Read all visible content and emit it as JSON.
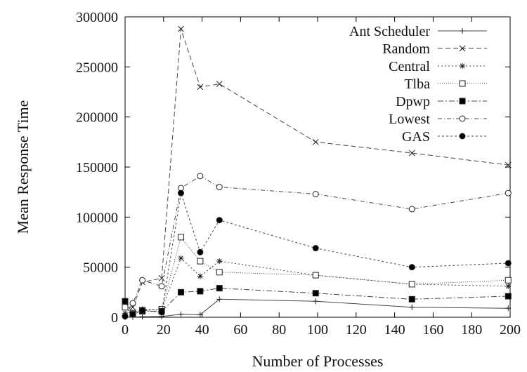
{
  "chart_data": {
    "type": "line",
    "title": "",
    "xlabel": "Number of Processes",
    "ylabel": "Mean Response Time",
    "xlim": [
      0,
      200
    ],
    "ylim": [
      0,
      300000
    ],
    "xticks": [
      0,
      20,
      40,
      60,
      80,
      100,
      120,
      140,
      160,
      180,
      200
    ],
    "yticks": [
      0,
      50000,
      100000,
      150000,
      200000,
      250000,
      300000
    ],
    "grid": false,
    "legend_position": "top-right",
    "x": [
      0,
      4,
      9,
      19,
      29,
      39,
      49,
      99,
      149,
      199
    ],
    "series": [
      {
        "name": "Ant Scheduler",
        "marker": "plus",
        "dash": "",
        "values": [
          0,
          200,
          500,
          800,
          3000,
          2500,
          18000,
          16000,
          10000,
          9000
        ]
      },
      {
        "name": "Random",
        "marker": "x",
        "dash": "7 4",
        "values": [
          10000,
          10000,
          35000,
          39000,
          288000,
          230000,
          233000,
          175000,
          164000,
          152000
        ]
      },
      {
        "name": "Central",
        "marker": "star",
        "dash": "2 3",
        "values": [
          4000,
          5000,
          8000,
          8000,
          59000,
          41000,
          56000,
          42000,
          33000,
          31000
        ]
      },
      {
        "name": "Tlba",
        "marker": "square-open",
        "dash": "1 2",
        "values": [
          10000,
          4000,
          7000,
          8000,
          80000,
          56000,
          45000,
          42000,
          33000,
          37000
        ]
      },
      {
        "name": "Dpwp",
        "marker": "square-filled",
        "dash": "8 3 2 3",
        "values": [
          16000,
          3000,
          6000,
          6000,
          25000,
          26000,
          29000,
          24000,
          18000,
          21000
        ]
      },
      {
        "name": "Lowest",
        "marker": "circle-open",
        "dash": "6 3 1 3",
        "values": [
          1000,
          14000,
          37000,
          31000,
          129000,
          141000,
          130000,
          123000,
          108000,
          124000
        ]
      },
      {
        "name": "GAS",
        "marker": "circle-filled",
        "dash": "3 3",
        "values": [
          1000,
          3000,
          7000,
          5000,
          124000,
          65000,
          97000,
          69000,
          50000,
          54000
        ]
      }
    ]
  }
}
